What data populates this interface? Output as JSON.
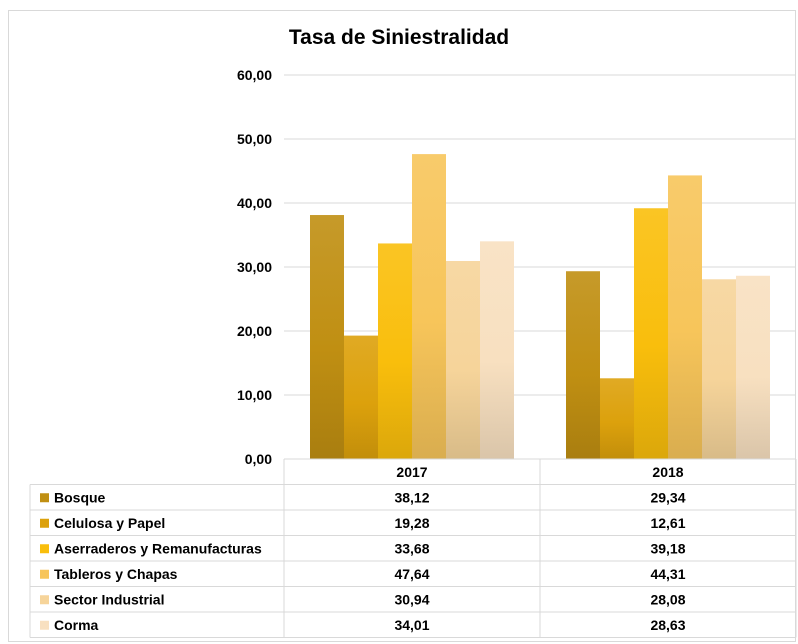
{
  "chart_data": {
    "type": "bar",
    "title": "Tasa de Siniestralidad",
    "categories": [
      "2017",
      "2018"
    ],
    "ylim": [
      0,
      60
    ],
    "yticks": [
      "0,00",
      "10,00",
      "20,00",
      "30,00",
      "40,00",
      "50,00",
      "60,00"
    ],
    "grid": true,
    "legend": "data-table",
    "series": [
      {
        "name": "Bosque",
        "values": [
          38.12,
          29.34
        ],
        "labels": [
          "38,12",
          "29,34"
        ],
        "color": "#c08f12"
      },
      {
        "name": "Celulosa y Papel",
        "values": [
          19.28,
          12.61
        ],
        "labels": [
          "19,28",
          "12,61"
        ],
        "color": "#dca10c"
      },
      {
        "name": "Aserraderos y Remanufacturas",
        "values": [
          33.68,
          39.18
        ],
        "labels": [
          "33,68",
          "39,18"
        ],
        "color": "#f9be0c"
      },
      {
        "name": "Tableros y Chapas",
        "values": [
          47.64,
          44.31
        ],
        "labels": [
          "47,64",
          "44,31"
        ],
        "color": "#f7c55a"
      },
      {
        "name": "Sector Industrial",
        "values": [
          30.94,
          28.08
        ],
        "labels": [
          "30,94",
          "28,08"
        ],
        "color": "#f6d49a"
      },
      {
        "name": "Corma",
        "values": [
          34.01,
          28.63
        ],
        "labels": [
          "34,01",
          "28,63"
        ],
        "color": "#f8e0c0"
      }
    ]
  }
}
